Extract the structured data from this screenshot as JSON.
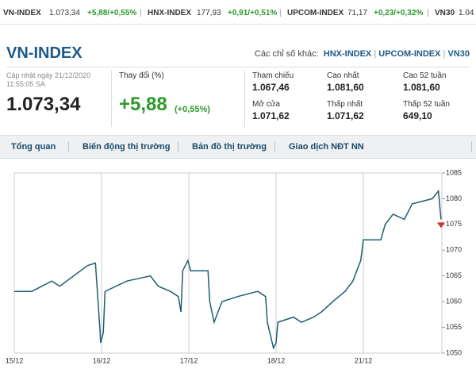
{
  "ticker": [
    {
      "name": "VN-INDEX",
      "value": "1.073,34",
      "change": "+5,88/+0,55%"
    },
    {
      "name": "HNX-INDEX",
      "value": "177,93",
      "change": "+0,91/+0,51%"
    },
    {
      "name": "UPCOM-INDEX",
      "value": "71,17",
      "change": "+0,23/+0,32%"
    },
    {
      "name": "VN30",
      "value": "1.04"
    }
  ],
  "header": {
    "title": "VN-INDEX",
    "others_label": "Các chỉ số khác:",
    "others": [
      "HNX-INDEX",
      "UPCOM-INDEX",
      "VN30"
    ],
    "updated_date": "Cập nhật ngày 21/12/2020",
    "updated_time": "11:55:05 SA",
    "price": "1.073,34",
    "change_label": "Thay đổi (%)",
    "change": "+5,88",
    "change_pct": "(+0,55%)"
  },
  "stats": [
    {
      "label": "Tham chiếu",
      "value": "1.067,46"
    },
    {
      "label": "Cao nhất",
      "value": "1.081,60"
    },
    {
      "label": "Cao 52 tuần",
      "value": "1.081,60"
    },
    {
      "label": "Mở cửa",
      "value": "1.071,62"
    },
    {
      "label": "Thấp nhất",
      "value": "1.071,62"
    },
    {
      "label": "Thấp 52 tuần",
      "value": "649,10"
    }
  ],
  "tabs": [
    "Tổng quan",
    "Biến động thị trường",
    "Bản đồ thị trường",
    "Giao dịch NĐT NN"
  ],
  "chart_data": {
    "type": "line",
    "color": "#1f5f6f",
    "x": [
      0,
      0.2,
      0.43,
      0.52,
      0.84,
      0.93,
      0.98,
      0.99,
      1.02,
      1.04,
      1.29,
      1.56,
      1.65,
      1.79,
      1.88,
      1.91,
      1.93,
      1.99,
      2.02,
      2.22,
      2.24,
      2.29,
      2.38,
      2.56,
      2.79,
      2.88,
      2.9,
      2.97,
      3.0,
      3.02,
      3.2,
      3.29,
      3.43,
      3.52,
      3.65,
      3.79,
      3.88,
      3.97,
      4.0,
      4.2,
      4.25,
      4.34,
      4.47,
      4.56,
      4.79,
      4.86,
      4.89
    ],
    "values": [
      1062,
      1062,
      1064,
      1063,
      1067,
      1067.5,
      1055,
      1052,
      1054,
      1062,
      1064,
      1065,
      1063,
      1062,
      1061,
      1058,
      1066,
      1068,
      1066,
      1066,
      1060,
      1056,
      1060,
      1061,
      1062,
      1061,
      1056,
      1051,
      1052,
      1056,
      1057,
      1056,
      1057,
      1058,
      1060,
      1062,
      1064,
      1068,
      1072,
      1072,
      1075,
      1077,
      1076,
      1079,
      1080,
      1081.5,
      1076
    ],
    "xlim": [
      0,
      4.9
    ],
    "xticks": [
      {
        "value": 0,
        "label": "15/12"
      },
      {
        "value": 1,
        "label": "16/12"
      },
      {
        "value": 2,
        "label": "17/12"
      },
      {
        "value": 3,
        "label": "18/12"
      },
      {
        "value": 4,
        "label": "21/12"
      }
    ],
    "ylim": [
      1050,
      1085
    ],
    "yticks": [
      1050,
      1055,
      1060,
      1065,
      1070,
      1075,
      1080,
      1085
    ],
    "grid": true
  }
}
